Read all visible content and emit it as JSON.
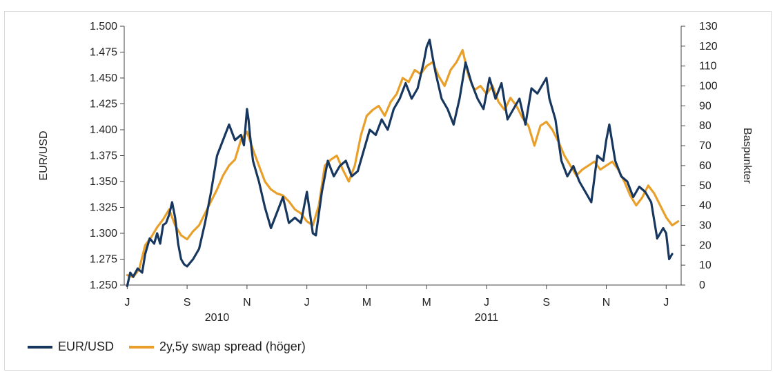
{
  "chart_data": {
    "type": "line",
    "title": "",
    "ylabel_left": "EUR/USD",
    "ylabel_right": "Baspunkter",
    "ylim_left": [
      1.25,
      1.5
    ],
    "ylim_right": [
      0,
      130
    ],
    "yticks_left": [
      "1.500",
      "1.475",
      "1.450",
      "1.425",
      "1.400",
      "1.375",
      "1.350",
      "1.325",
      "1.300",
      "1.275",
      "1.250"
    ],
    "yticks_right": [
      "130",
      "120",
      "110",
      "100",
      "90",
      "80",
      "70",
      "60",
      "50",
      "40",
      "30",
      "20",
      "10",
      "0"
    ],
    "xticks": [
      "J",
      "S",
      "N",
      "J",
      "M",
      "M",
      "J",
      "S",
      "N",
      "J"
    ],
    "xtick_positions": [
      0,
      2,
      4,
      6,
      8,
      10,
      12,
      14,
      16,
      18
    ],
    "year_labels": [
      {
        "label": "2010",
        "position": 3
      },
      {
        "label": "2011",
        "position": 12
      }
    ],
    "legend_position": "bottom-left",
    "series": [
      {
        "name": "EUR/USD",
        "axis": "left",
        "color": "#17375e",
        "x": [
          0,
          0.1,
          0.2,
          0.35,
          0.5,
          0.6,
          0.75,
          0.9,
          1.0,
          1.1,
          1.2,
          1.3,
          1.4,
          1.5,
          1.6,
          1.7,
          1.8,
          1.9,
          2.0,
          2.2,
          2.4,
          2.6,
          2.8,
          3.0,
          3.2,
          3.4,
          3.6,
          3.8,
          3.9,
          4.0,
          4.05,
          4.1,
          4.2,
          4.4,
          4.6,
          4.8,
          5.0,
          5.2,
          5.4,
          5.6,
          5.8,
          6.0,
          6.1,
          6.2,
          6.3,
          6.5,
          6.7,
          6.9,
          7.1,
          7.3,
          7.5,
          7.7,
          7.9,
          8.1,
          8.3,
          8.5,
          8.7,
          8.9,
          9.1,
          9.3,
          9.5,
          9.7,
          9.9,
          10.0,
          10.1,
          10.2,
          10.3,
          10.5,
          10.7,
          10.9,
          11.1,
          11.3,
          11.5,
          11.7,
          11.9,
          12.1,
          12.3,
          12.5,
          12.7,
          12.9,
          13.1,
          13.3,
          13.5,
          13.7,
          13.9,
          14.0,
          14.1,
          14.3,
          14.5,
          14.7,
          14.9,
          15.1,
          15.3,
          15.5,
          15.7,
          15.9,
          16.0,
          16.1,
          16.3,
          16.5,
          16.7,
          16.9,
          17.1,
          17.3,
          17.5,
          17.7,
          17.9,
          18.0,
          18.1,
          18.2
        ],
        "values": [
          1.249,
          1.262,
          1.258,
          1.266,
          1.262,
          1.28,
          1.295,
          1.29,
          1.3,
          1.29,
          1.308,
          1.31,
          1.318,
          1.33,
          1.315,
          1.29,
          1.275,
          1.27,
          1.268,
          1.275,
          1.285,
          1.31,
          1.34,
          1.375,
          1.39,
          1.405,
          1.39,
          1.395,
          1.385,
          1.42,
          1.41,
          1.395,
          1.37,
          1.35,
          1.325,
          1.305,
          1.32,
          1.335,
          1.31,
          1.315,
          1.31,
          1.34,
          1.32,
          1.3,
          1.298,
          1.34,
          1.37,
          1.355,
          1.365,
          1.37,
          1.355,
          1.36,
          1.38,
          1.4,
          1.395,
          1.41,
          1.4,
          1.42,
          1.43,
          1.445,
          1.43,
          1.44,
          1.465,
          1.48,
          1.487,
          1.47,
          1.455,
          1.43,
          1.42,
          1.405,
          1.43,
          1.465,
          1.445,
          1.43,
          1.42,
          1.45,
          1.43,
          1.445,
          1.41,
          1.42,
          1.43,
          1.405,
          1.44,
          1.435,
          1.445,
          1.45,
          1.43,
          1.41,
          1.37,
          1.355,
          1.365,
          1.35,
          1.34,
          1.33,
          1.375,
          1.37,
          1.39,
          1.405,
          1.37,
          1.355,
          1.35,
          1.335,
          1.345,
          1.34,
          1.33,
          1.295,
          1.305,
          1.3,
          1.275,
          1.28
        ]
      },
      {
        "name": "2y,5y swap spread (höger)",
        "axis": "right",
        "color": "#e8a02a",
        "x": [
          0,
          0.2,
          0.4,
          0.6,
          0.8,
          1.0,
          1.2,
          1.4,
          1.6,
          1.8,
          2.0,
          2.2,
          2.4,
          2.6,
          2.8,
          3.0,
          3.2,
          3.4,
          3.6,
          3.8,
          4.0,
          4.2,
          4.4,
          4.6,
          4.8,
          5.0,
          5.2,
          5.4,
          5.6,
          5.8,
          6.0,
          6.2,
          6.4,
          6.6,
          6.8,
          7.0,
          7.2,
          7.4,
          7.6,
          7.8,
          8.0,
          8.2,
          8.4,
          8.6,
          8.8,
          9.0,
          9.2,
          9.4,
          9.6,
          9.8,
          10.0,
          10.2,
          10.4,
          10.6,
          10.8,
          11.0,
          11.2,
          11.4,
          11.6,
          11.8,
          12.0,
          12.2,
          12.4,
          12.6,
          12.8,
          13.0,
          13.2,
          13.4,
          13.6,
          13.8,
          14.0,
          14.2,
          14.4,
          14.6,
          14.8,
          15.0,
          15.2,
          15.4,
          15.6,
          15.8,
          16.0,
          16.2,
          16.4,
          16.6,
          16.8,
          17.0,
          17.2,
          17.4,
          17.6,
          17.8,
          18.0,
          18.2,
          18.4
        ],
        "values": [
          5,
          4,
          8,
          20,
          24,
          29,
          33,
          38,
          30,
          25,
          23,
          27,
          30,
          36,
          42,
          48,
          55,
          60,
          63,
          73,
          77,
          68,
          60,
          52,
          48,
          46,
          45,
          42,
          38,
          36,
          32,
          30,
          40,
          60,
          63,
          65,
          58,
          52,
          60,
          75,
          85,
          88,
          90,
          85,
          92,
          96,
          104,
          102,
          108,
          106,
          110,
          112,
          105,
          100,
          108,
          112,
          118,
          105,
          98,
          100,
          96,
          100,
          92,
          88,
          94,
          90,
          84,
          80,
          70,
          80,
          82,
          78,
          72,
          65,
          60,
          55,
          58,
          60,
          62,
          58,
          60,
          62,
          58,
          52,
          45,
          40,
          44,
          50,
          46,
          40,
          34,
          30,
          32
        ]
      }
    ]
  }
}
